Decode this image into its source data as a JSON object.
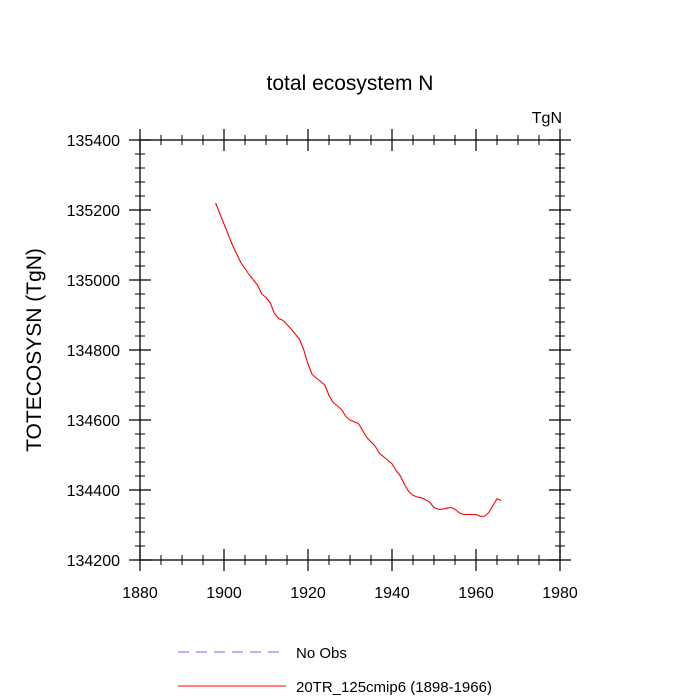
{
  "chart_data": {
    "type": "line",
    "title": "total ecosystem N",
    "units_label": "TgN",
    "xlabel": "",
    "ylabel": "TOTECOSYSN  (TgN)",
    "xlim": [
      1880,
      1980
    ],
    "ylim": [
      134200,
      135400
    ],
    "x_ticks": [
      1880,
      1900,
      1920,
      1940,
      1960,
      1980
    ],
    "y_ticks": [
      134200,
      134400,
      134600,
      134800,
      135000,
      135200,
      135400
    ],
    "x_tick_labels": [
      "1880",
      "1900",
      "1920",
      "1940",
      "1960",
      "1980"
    ],
    "y_tick_labels": [
      "134200",
      "134400",
      "134600",
      "134800",
      "135000",
      "135200",
      "135400"
    ],
    "series": [
      {
        "name": "20TR_125cmip6 (1898-1966)",
        "color": "#ff0000",
        "style": "solid",
        "x": [
          1898,
          1900,
          1902,
          1904,
          1906,
          1908,
          1909,
          1910,
          1911,
          1912,
          1913,
          1914,
          1916,
          1918,
          1919,
          1920,
          1921,
          1922,
          1923,
          1924,
          1925,
          1926,
          1928,
          1929,
          1930,
          1932,
          1934,
          1936,
          1937,
          1938,
          1940,
          1941,
          1942,
          1943,
          1944,
          1945,
          1946,
          1947,
          1948,
          1949,
          1950,
          1951,
          1952,
          1953,
          1954,
          1955,
          1956,
          1957,
          1958,
          1959,
          1960,
          1961,
          1962,
          1963,
          1964,
          1965,
          1966
        ],
        "y": [
          135220,
          135160,
          135100,
          135050,
          135015,
          134985,
          134960,
          134950,
          134935,
          134905,
          134890,
          134885,
          134860,
          134830,
          134800,
          134760,
          134730,
          134720,
          134710,
          134700,
          134670,
          134650,
          134630,
          134610,
          134600,
          134590,
          134550,
          134525,
          134505,
          134495,
          134475,
          134455,
          134440,
          134415,
          134395,
          134385,
          134380,
          134378,
          134372,
          134365,
          134350,
          134345,
          134345,
          134348,
          134350,
          134345,
          134335,
          134330,
          134330,
          134330,
          134330,
          134325,
          134325,
          134335,
          134355,
          134375,
          134370
        ]
      }
    ],
    "legend": [
      {
        "label": "No Obs",
        "color": "#6464ff",
        "style": "dashed"
      },
      {
        "label": "20TR_125cmip6 (1898-1966)",
        "color": "#ff0000",
        "style": "solid"
      }
    ],
    "grid": false,
    "legend_position": "bottom"
  }
}
